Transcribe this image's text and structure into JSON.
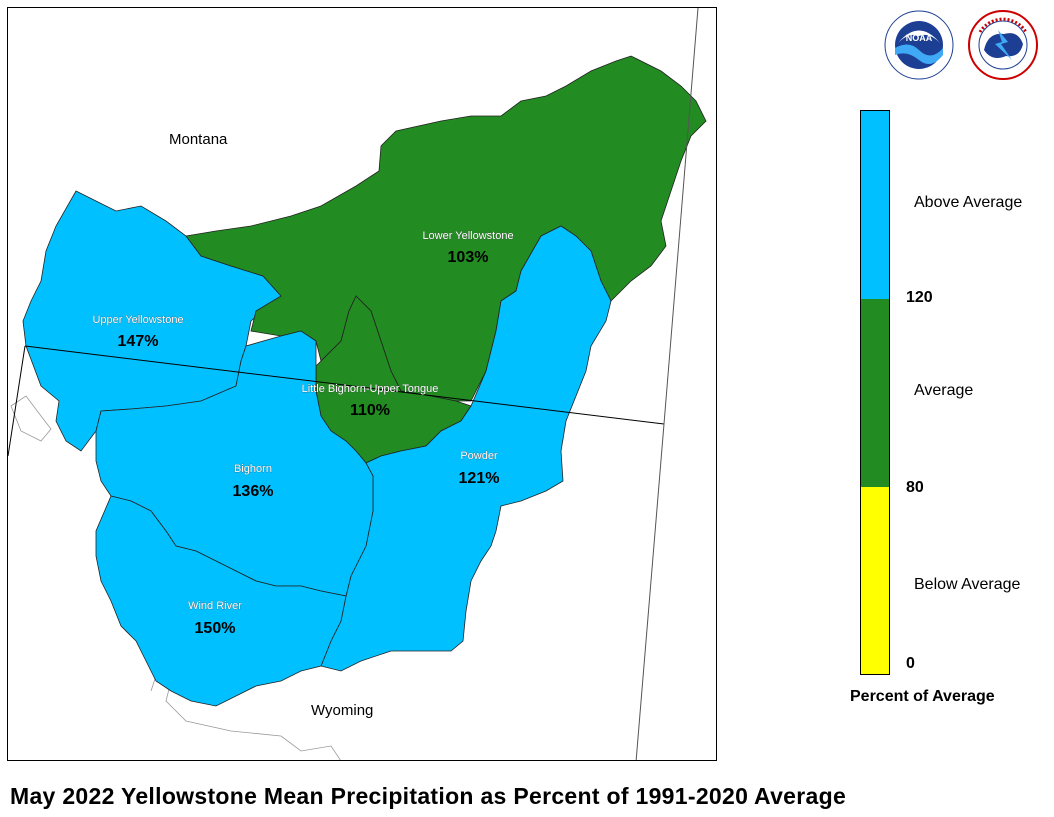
{
  "title": "May 2022 Yellowstone Mean Precipitation as Percent of 1991-2020 Average",
  "states": {
    "montana": "Montana",
    "wyoming": "Wyoming"
  },
  "basins": [
    {
      "id": "upper-yellowstone",
      "name": "Upper Yellowstone",
      "percent": "147%",
      "category": "Above Average"
    },
    {
      "id": "lower-yellowstone",
      "name": "Lower Yellowstone",
      "percent": "103%",
      "category": "Average"
    },
    {
      "id": "little-bighorn",
      "name": "Little Bighorn-Upper Tongue",
      "percent": "110%",
      "category": "Average"
    },
    {
      "id": "bighorn",
      "name": "Bighorn",
      "percent": "136%",
      "category": "Above Average"
    },
    {
      "id": "powder",
      "name": "Powder",
      "percent": "121%",
      "category": "Above Average"
    },
    {
      "id": "wind-river",
      "name": "Wind River",
      "percent": "150%",
      "category": "Above Average"
    }
  ],
  "legend": {
    "title": "Percent of Average",
    "categories": [
      {
        "label": "Above Average",
        "color": "#00c0ff"
      },
      {
        "label": "Average",
        "color": "#228b22"
      },
      {
        "label": "Below Average",
        "color": "#ffff00"
      }
    ],
    "ticks": [
      "120",
      "80",
      "0"
    ]
  },
  "logos": {
    "noaa": {
      "text": "NOAA",
      "ring_text": "NATIONAL OCEANIC AND ATMOSPHERIC ADMINISTRATION"
    },
    "nws": {
      "ring_text": "NATIONAL WEATHER SERVICE"
    }
  },
  "colors": {
    "above": "#00c0ff",
    "average": "#228b22",
    "below": "#ffff00"
  }
}
